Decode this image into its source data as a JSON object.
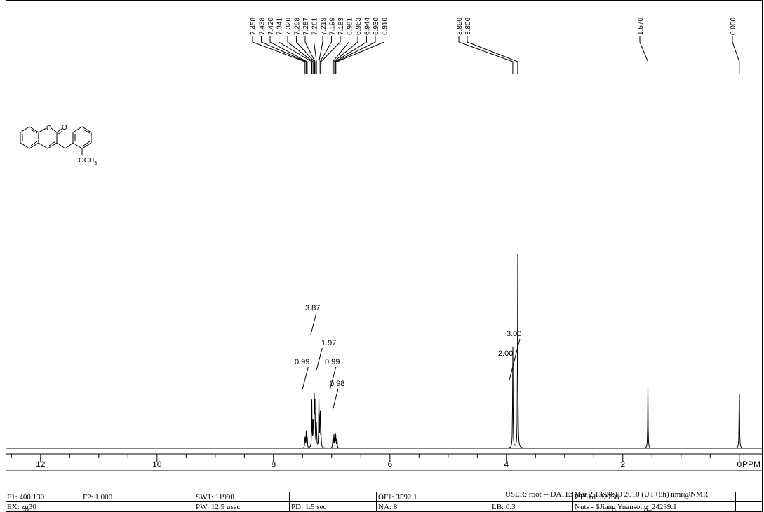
{
  "chart_data": {
    "type": "line",
    "xlabel": "PPM",
    "xlim": [
      12.6,
      -0.4
    ],
    "x_reversed": true,
    "ticks": [
      {
        "value": 12,
        "label": "12"
      },
      {
        "value": 10,
        "label": "10"
      },
      {
        "value": 8,
        "label": "8"
      },
      {
        "value": 6,
        "label": "6"
      },
      {
        "value": 4,
        "label": "4"
      },
      {
        "value": 2,
        "label": "2"
      },
      {
        "value": 0,
        "label": "0"
      }
    ],
    "peak_labels": [
      "7.458",
      "7.438",
      "7.420",
      "7.341",
      "7.320",
      "7.298",
      "7.287",
      "7.261",
      "7.219",
      "7.199",
      "7.183",
      "6.981",
      "6.963",
      "6.944",
      "6.930",
      "6.910",
      "3.890",
      "3.806",
      "1.570",
      "0.000"
    ],
    "peaks": [
      {
        "shift": 7.458,
        "intensity": 0.07
      },
      {
        "shift": 7.438,
        "intensity": 0.08
      },
      {
        "shift": 7.42,
        "intensity": 0.05
      },
      {
        "shift": 7.341,
        "intensity": 0.22
      },
      {
        "shift": 7.32,
        "intensity": 0.18
      },
      {
        "shift": 7.298,
        "intensity": 0.24
      },
      {
        "shift": 7.287,
        "intensity": 0.2
      },
      {
        "shift": 7.261,
        "intensity": 0.13
      },
      {
        "shift": 7.219,
        "intensity": 0.27
      },
      {
        "shift": 7.199,
        "intensity": 0.23
      },
      {
        "shift": 7.183,
        "intensity": 0.07
      },
      {
        "shift": 6.981,
        "intensity": 0.05
      },
      {
        "shift": 6.963,
        "intensity": 0.07
      },
      {
        "shift": 6.944,
        "intensity": 0.05
      },
      {
        "shift": 6.93,
        "intensity": 0.07
      },
      {
        "shift": 6.91,
        "intensity": 0.06
      },
      {
        "shift": 3.89,
        "intensity": 0.5
      },
      {
        "shift": 3.806,
        "intensity": 1.0
      },
      {
        "shift": 1.57,
        "intensity": 0.3
      },
      {
        "shift": 0.0,
        "intensity": 0.35
      }
    ],
    "integrals": [
      {
        "label": "3.87",
        "from": 7.34,
        "to": 7.26
      },
      {
        "label": "0.99",
        "from": 7.46,
        "to": 7.42
      },
      {
        "label": "1.97",
        "from": 7.22,
        "to": 7.18
      },
      {
        "label": "0.99",
        "from": 6.98,
        "to": 6.95
      },
      {
        "label": "0.98",
        "from": 6.94,
        "to": 6.91
      },
      {
        "label": "2.00",
        "from": 3.9,
        "to": 3.88
      },
      {
        "label": "3.00",
        "from": 3.82,
        "to": 3.79
      }
    ]
  },
  "structure": {
    "label_o_ring": "O",
    "label_o_carbonyl": "O",
    "label_methoxy": "OCH",
    "label_methoxy_sub": "3"
  },
  "footer": {
    "user_line": "USER: root -- DATE: Mar  2 13:00:19 2010  (UT+8h)  nmr@NMR",
    "row1": [
      "F1: 400.130",
      "F2: 1.000",
      "SW1: 11990",
      "",
      "OF1: 3592.1",
      "",
      "PTS1d: 32768",
      ""
    ],
    "row2": [
      "EX: zg30",
      "",
      "PW: 12.5 usec",
      "PD: 1.5   sec",
      "NA: 8",
      "LB: 0.3",
      "Nuts - $Jiang Yuansong_24239.1",
      ""
    ]
  }
}
